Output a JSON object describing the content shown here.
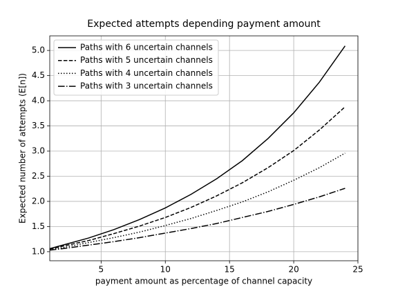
{
  "chart_data": {
    "type": "line",
    "title": "Expected attempts depending payment amount",
    "x_label": "payment amount as percentage of channel capacity",
    "y_label": "Expected number of attempts (E[n])",
    "x": [
      1,
      2,
      4,
      6,
      8,
      10,
      12,
      14,
      16,
      18,
      20,
      22,
      24
    ],
    "series": [
      {
        "name": "Paths with 6 uncertain channels",
        "color": "#000000",
        "linestyle": "solid",
        "values": [
          1.06,
          1.13,
          1.27,
          1.44,
          1.64,
          1.87,
          2.14,
          2.45,
          2.81,
          3.25,
          3.76,
          4.37,
          5.09
        ]
      },
      {
        "name": "Paths with 5 uncertain channels",
        "color": "#000000",
        "linestyle": "dashed",
        "values": [
          1.05,
          1.11,
          1.22,
          1.36,
          1.51,
          1.68,
          1.88,
          2.11,
          2.37,
          2.67,
          3.01,
          3.42,
          3.88
        ]
      },
      {
        "name": "Paths with 4 uncertain channels",
        "color": "#000000",
        "linestyle": "dotted",
        "values": [
          1.04,
          1.08,
          1.18,
          1.28,
          1.39,
          1.52,
          1.66,
          1.82,
          1.99,
          2.19,
          2.42,
          2.67,
          2.96
        ]
      },
      {
        "name": "Paths with 3 uncertain channels",
        "color": "#000000",
        "linestyle": "dashdot",
        "values": [
          1.03,
          1.06,
          1.13,
          1.2,
          1.28,
          1.37,
          1.46,
          1.56,
          1.68,
          1.8,
          1.94,
          2.09,
          2.26
        ]
      }
    ],
    "xlim": [
      1,
      25
    ],
    "ylim": [
      0.82,
      5.29
    ],
    "xticks": [
      5,
      10,
      15,
      20,
      25
    ],
    "yticks": [
      {
        "value": 1,
        "label": "1.0"
      },
      {
        "value": 1.5,
        "label": "1.5"
      },
      {
        "value": 2,
        "label": "2.0"
      },
      {
        "value": 2.5,
        "label": "2.5"
      },
      {
        "value": 3,
        "label": "3.0"
      },
      {
        "value": 3.5,
        "label": "3.5"
      },
      {
        "value": 4,
        "label": "4.0"
      },
      {
        "value": 4.5,
        "label": "4.5"
      },
      {
        "value": 5,
        "label": "5.0"
      }
    ],
    "grid": true,
    "legend": "upper-left"
  }
}
